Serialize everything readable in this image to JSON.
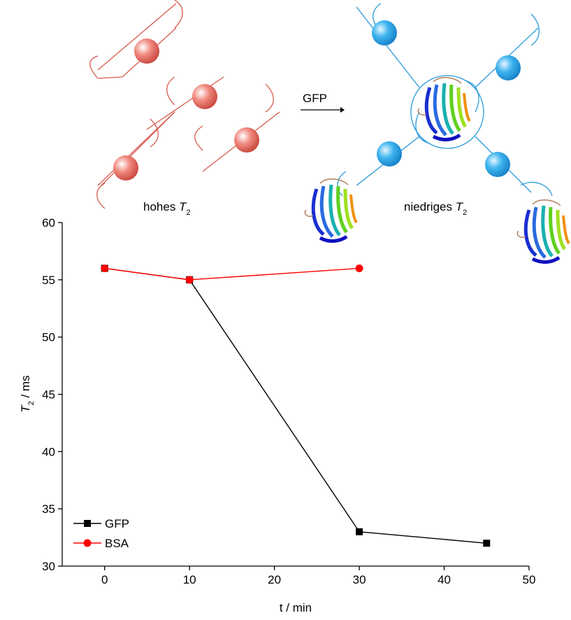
{
  "chart_data": {
    "type": "line",
    "xlabel": "t / min",
    "ylabel": [
      "T",
      "2",
      " / ms"
    ],
    "xlim": [
      -5,
      50
    ],
    "xticks": [
      0,
      10,
      20,
      30,
      40,
      50
    ],
    "ylim": [
      30,
      60
    ],
    "yticks": [
      30,
      35,
      40,
      45,
      50,
      55,
      60
    ],
    "legend": "lower left",
    "series": [
      {
        "name": "GFP",
        "color": "#000000",
        "marker": "square",
        "x": [
          0,
          10,
          30,
          45
        ],
        "values": [
          56,
          55,
          33,
          32
        ]
      },
      {
        "name": "BSA",
        "color": "#ff0000",
        "marker": "circle",
        "x": [
          0,
          10,
          30
        ],
        "values": [
          56,
          55,
          56
        ]
      }
    ]
  },
  "diagram": {
    "arrow_label": "GFP",
    "left_label": [
      "hohes ",
      "T",
      "2"
    ],
    "right_label": [
      "niedriges ",
      "T",
      "2"
    ]
  }
}
